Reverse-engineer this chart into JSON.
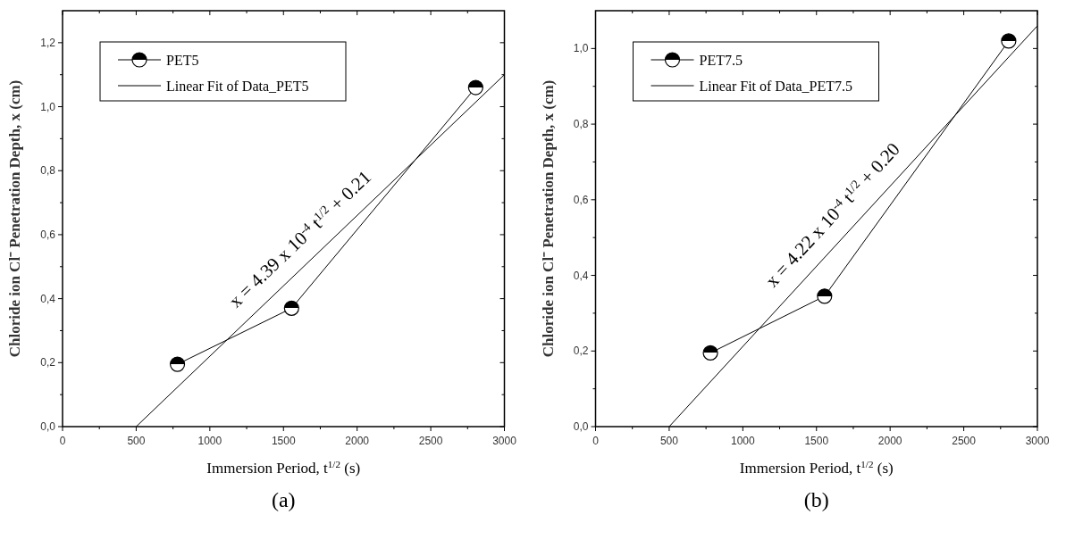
{
  "chart_data": [
    {
      "type": "line",
      "xlabel": "Immersion Period, t$^{1/2}$ (s)",
      "ylabel": "Chloride ion Cl⁻ Penetration Depth, x (cm)",
      "xlim": [
        0,
        3000
      ],
      "ylim": [
        0,
        1.3
      ],
      "xticks": [
        0,
        {
          "value": 250,
          "label": null
        },
        500,
        {
          "value": 750,
          "label": null
        },
        1000,
        {
          "value": 1250,
          "label": null
        },
        1500,
        {
          "value": 1750,
          "label": null
        },
        2000,
        {
          "value": 2250,
          "label": null
        },
        2500,
        {
          "value": 2750,
          "label": null
        },
        3000
      ],
      "yticks": [
        {
          "value": 0,
          "label": "0,0"
        },
        {
          "value": 0.1,
          "label": null
        },
        {
          "value": 0.2,
          "label": "0,2"
        },
        {
          "value": 0.3,
          "label": null
        },
        {
          "value": 0.4,
          "label": "0,4"
        },
        {
          "value": 0.5,
          "label": null
        },
        {
          "value": 0.6,
          "label": "0,6"
        },
        {
          "value": 0.7,
          "label": null
        },
        {
          "value": 0.8,
          "label": "0,8"
        },
        {
          "value": 0.9,
          "label": null
        },
        {
          "value": 1.0,
          "label": "1,0"
        },
        {
          "value": 1.1,
          "label": null
        },
        {
          "value": 1.2,
          "label": "1,2"
        }
      ],
      "series": [
        {
          "name": "PET5",
          "color": "#000000",
          "marker": "circle",
          "x": [
            780,
            1555,
            2805
          ],
          "values": [
            0.195,
            0.37,
            1.06
          ]
        },
        {
          "name": "Linear Fit of Data_PET5",
          "color": "#000000",
          "marker": "none",
          "x": [
            500,
            3000
          ],
          "values": [
            0,
            1.1
          ]
        }
      ],
      "annotations": [
        "x = 4.39 x 10$^{-4}$  t$^{1/2}$ + 0.21",
        "(a)"
      ],
      "legend": "top left",
      "grid": false
    },
    {
      "type": "line",
      "xlabel": "Immersion Period, t$^{1/2}$ (s)",
      "ylabel": "Chloride ion Cl⁻ Penetration Depth, x (cm)",
      "xlim": [
        0,
        3000
      ],
      "ylim": [
        0,
        1.1
      ],
      "xticks": [
        0,
        {
          "value": 250,
          "label": null
        },
        500,
        {
          "value": 750,
          "label": null
        },
        1000,
        {
          "value": 1250,
          "label": null
        },
        1500,
        {
          "value": 1750,
          "label": null
        },
        2000,
        {
          "value": 2250,
          "label": null
        },
        2500,
        {
          "value": 2750,
          "label": null
        },
        3000
      ],
      "yticks": [
        {
          "value": 0,
          "label": "0,0"
        },
        {
          "value": 0.1,
          "label": null
        },
        {
          "value": 0.2,
          "label": "0,2"
        },
        {
          "value": 0.3,
          "label": null
        },
        {
          "value": 0.4,
          "label": "0,4"
        },
        {
          "value": 0.5,
          "label": null
        },
        {
          "value": 0.6,
          "label": "0,6"
        },
        {
          "value": 0.7,
          "label": null
        },
        {
          "value": 0.8,
          "label": "0,8"
        },
        {
          "value": 0.9,
          "label": null
        },
        {
          "value": 1.0,
          "label": "1,0"
        }
      ],
      "series": [
        {
          "name": "PET7.5",
          "color": "#000000",
          "marker": "circle",
          "x": [
            780,
            1555,
            2805
          ],
          "values": [
            0.195,
            0.345,
            1.02
          ]
        },
        {
          "name": "Linear Fit of Data_PET7.5",
          "color": "#000000",
          "marker": "none",
          "x": [
            500,
            3000
          ],
          "values": [
            0,
            1.06
          ]
        }
      ],
      "annotations": [
        "x = 4.22 x 10$^{-4}$  t$^{1/2}$ + 0.20",
        "(b)"
      ],
      "legend": "top left",
      "grid": false
    }
  ]
}
